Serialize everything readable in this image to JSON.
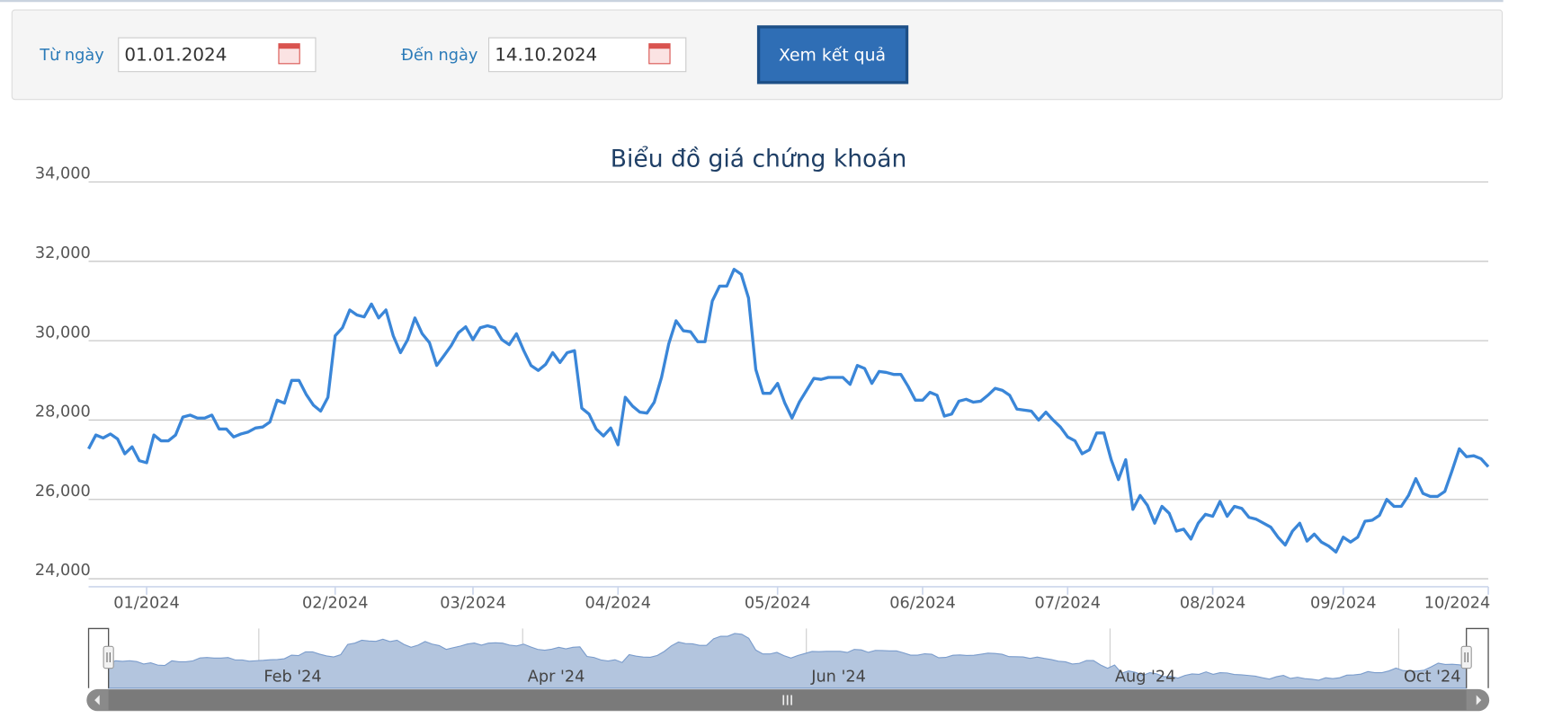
{
  "form": {
    "from_label": "Từ ngày",
    "from_value": "01.01.2024",
    "to_label": "Đến ngày",
    "to_value": "14.10.2024",
    "button": "Xem kết quả"
  },
  "chart_data": {
    "type": "line",
    "title": "Biểu đồ giá chứng khoán",
    "categories": [
      null,
      null,
      null,
      null,
      null,
      null,
      null,
      null,
      "01/2024",
      null,
      null,
      null,
      null,
      null,
      null,
      null,
      null,
      null,
      null,
      null,
      null,
      null,
      null,
      null,
      null,
      null,
      null,
      null,
      null,
      null,
      null,
      null,
      null,
      null,
      "02/2024",
      null,
      null,
      null,
      null,
      null,
      null,
      null,
      null,
      null,
      null,
      null,
      null,
      null,
      null,
      null,
      null,
      null,
      null,
      "03/2024",
      null,
      null,
      null,
      null,
      null,
      null,
      null,
      null,
      null,
      null,
      null,
      null,
      null,
      null,
      null,
      null,
      null,
      null,
      null,
      "04/2024",
      null,
      null,
      null,
      null,
      null,
      null,
      null,
      null,
      null,
      null,
      null,
      null,
      null,
      null,
      null,
      null,
      null,
      null,
      null,
      null,
      null,
      "05/2024",
      null,
      null,
      null,
      null,
      null,
      null,
      null,
      null,
      null,
      null,
      null,
      null,
      null,
      null,
      null,
      null,
      null,
      null,
      null,
      "06/2024",
      null,
      null,
      null,
      null,
      null,
      null,
      null,
      null,
      null,
      null,
      null,
      null,
      null,
      null,
      null,
      null,
      null,
      null,
      null,
      "07/2024",
      null,
      null,
      null,
      null,
      null,
      null,
      null,
      null,
      null,
      null,
      null,
      null,
      null,
      null,
      null,
      null,
      null,
      null,
      null,
      "08/2024",
      null,
      null,
      null,
      null,
      null,
      null,
      null,
      null,
      null,
      null,
      null,
      null,
      null,
      null,
      null,
      null,
      null,
      "09/2024",
      null,
      null,
      null,
      null,
      null,
      null,
      null,
      null,
      null,
      null,
      null,
      null,
      null,
      null,
      null,
      null,
      null,
      null,
      null,
      "10/2024"
    ],
    "values": [
      27275,
      27625,
      27550,
      27650,
      27525,
      27150,
      27325,
      26975,
      26925,
      27625,
      27475,
      27475,
      27625,
      28075,
      28125,
      28050,
      28050,
      28125,
      27775,
      27775,
      27575,
      27650,
      27700,
      27800,
      27825,
      27950,
      28500,
      28425,
      29000,
      29000,
      28650,
      28375,
      28225,
      28575,
      30125,
      30325,
      30775,
      30650,
      30600,
      30925,
      30575,
      30775,
      30125,
      29700,
      30025,
      30575,
      30175,
      29950,
      29375,
      29625,
      29875,
      30200,
      30350,
      30025,
      30325,
      30375,
      30325,
      30025,
      29900,
      30175,
      29750,
      29375,
      29250,
      29400,
      29700,
      29450,
      29700,
      29750,
      28300,
      28150,
      27775,
      27600,
      27800,
      27375,
      28575,
      28350,
      28200,
      28175,
      28450,
      29075,
      29925,
      30500,
      30250,
      30225,
      29975,
      29975,
      31000,
      31375,
      31375,
      31800,
      31675,
      31075,
      29275,
      28675,
      28675,
      28925,
      28425,
      28050,
      28450,
      28750,
      29050,
      29025,
      29075,
      29075,
      29075,
      28900,
      29375,
      29300,
      28925,
      29225,
      29200,
      29150,
      29150,
      28850,
      28500,
      28500,
      28700,
      28625,
      28100,
      28150,
      28475,
      28525,
      28450,
      28475,
      28625,
      28800,
      28750,
      28625,
      28275,
      28250,
      28225,
      28000,
      28200,
      28000,
      27825,
      27575,
      27475,
      27150,
      27250,
      27675,
      27675,
      27000,
      26500,
      27000,
      25750,
      26100,
      25850,
      25400,
      25825,
      25650,
      25200,
      25250,
      25000,
      25400,
      25625,
      25575,
      25950,
      25575,
      25825,
      25775,
      25550,
      25500,
      25400,
      25300,
      25050,
      24850,
      25200,
      25400,
      24950,
      25125,
      24925,
      24825,
      24675,
      25050,
      24925,
      25050,
      25450,
      25475,
      25600,
      26000,
      25825,
      25825,
      26100,
      26525,
      26150,
      26075,
      26075,
      26200,
      26725,
      27275,
      27075,
      27100,
      27025,
      26825
    ],
    "color": "#3a86d8",
    "ylim": [
      24000,
      34000
    ],
    "yticks": [
      {
        "value": 24000,
        "label": "24,000"
      },
      {
        "value": 26000,
        "label": "26,000"
      },
      {
        "value": 28000,
        "label": "28,000"
      },
      {
        "value": 30000,
        "label": "30,000"
      },
      {
        "value": 32000,
        "label": "32,000"
      },
      {
        "value": 34000,
        "label": "34,000"
      }
    ],
    "grid": true,
    "navigator_labels": [
      "Feb '24",
      "Apr '24",
      "Jun '24",
      "Aug '24",
      "Oct '24"
    ]
  }
}
